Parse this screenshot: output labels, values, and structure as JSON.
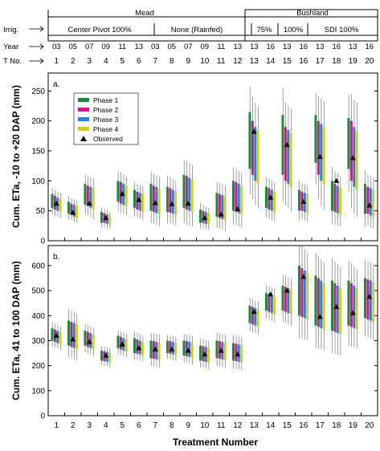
{
  "header": {
    "sites": [
      "Mead",
      "Bushland"
    ],
    "irrigation_label": "Irrig.",
    "irrigation": [
      "Center Pivot 100%",
      "None (Rainfed)",
      "75%",
      "100%",
      "SDI 100%"
    ],
    "year_label": "Year",
    "years": [
      "03",
      "05",
      "07",
      "09",
      "11",
      "13",
      "03",
      "05",
      "07",
      "09",
      "11",
      "13",
      "13",
      "16",
      "13",
      "16",
      "13",
      "16",
      "13",
      "16"
    ],
    "tno_label": "T No."
  },
  "chart_data": [
    {
      "type": "box",
      "panel_label": "a.",
      "ylabel": "Cum. ETa, -10 to +20 DAP (mm)",
      "xlabel": "",
      "ylim": [
        0,
        280
      ],
      "yticks": [
        0,
        50,
        100,
        150,
        200,
        250
      ],
      "categories": [
        "1",
        "2",
        "3",
        "4",
        "5",
        "6",
        "7",
        "8",
        "9",
        "10",
        "11",
        "12",
        "13",
        "14",
        "15",
        "16",
        "17",
        "18",
        "19",
        "20"
      ],
      "legend": [
        "Phase 1",
        "Phase 2",
        "Phase 3",
        "Phase 4",
        "Observed"
      ],
      "series": [
        {
          "name": "Phase 1",
          "color": "#1a8a3a",
          "boxes": [
            [
              55,
              78
            ],
            [
              45,
              65
            ],
            [
              60,
              95
            ],
            [
              30,
              48
            ],
            [
              65,
              100
            ],
            [
              55,
              85
            ],
            [
              50,
              95
            ],
            [
              48,
              90
            ],
            [
              55,
              110
            ],
            [
              30,
              52
            ],
            [
              40,
              80
            ],
            [
              50,
              100
            ],
            [
              120,
              215
            ],
            [
              55,
              90
            ],
            [
              110,
              210
            ],
            [
              50,
              85
            ],
            [
              130,
              210
            ],
            [
              50,
              100
            ],
            [
              120,
              205
            ],
            [
              45,
              95
            ]
          ]
        },
        {
          "name": "Phase 2",
          "color": "#c0208a",
          "boxes": [
            [
              52,
              75
            ],
            [
              43,
              62
            ],
            [
              58,
              92
            ],
            [
              30,
              46
            ],
            [
              62,
              98
            ],
            [
              52,
              82
            ],
            [
              48,
              92
            ],
            [
              47,
              88
            ],
            [
              52,
              108
            ],
            [
              30,
              50
            ],
            [
              38,
              78
            ],
            [
              48,
              98
            ],
            [
              110,
              200
            ],
            [
              52,
              88
            ],
            [
              100,
              190
            ],
            [
              50,
              82
            ],
            [
              110,
              200
            ],
            [
              48,
              95
            ],
            [
              100,
              200
            ],
            [
              45,
              90
            ]
          ]
        },
        {
          "name": "Phase 3",
          "color": "#2f7fd0",
          "boxes": [
            [
              50,
              72
            ],
            [
              40,
              60
            ],
            [
              55,
              90
            ],
            [
              28,
              44
            ],
            [
              60,
              95
            ],
            [
              50,
              80
            ],
            [
              46,
              90
            ],
            [
              45,
              85
            ],
            [
              50,
              105
            ],
            [
              28,
              48
            ],
            [
              36,
              76
            ],
            [
              46,
              95
            ],
            [
              100,
              190
            ],
            [
              50,
              85
            ],
            [
              95,
              185
            ],
            [
              48,
              80
            ],
            [
              100,
              195
            ],
            [
              46,
              92
            ],
            [
              90,
              190
            ],
            [
              42,
              88
            ]
          ]
        },
        {
          "name": "Phase 4",
          "color": "#d8cc20",
          "boxes": [
            [
              48,
              70
            ],
            [
              38,
              58
            ],
            [
              52,
              88
            ],
            [
              27,
              42
            ],
            [
              58,
              92
            ],
            [
              48,
              78
            ],
            [
              44,
              88
            ],
            [
              43,
              82
            ],
            [
              48,
              102
            ],
            [
              27,
              46
            ],
            [
              34,
              74
            ],
            [
              44,
              92
            ],
            [
              95,
              185
            ],
            [
              48,
              82
            ],
            [
              90,
              180
            ],
            [
              46,
              78
            ],
            [
              95,
              190
            ],
            [
              44,
              88
            ],
            [
              85,
              185
            ],
            [
              40,
              85
            ]
          ]
        }
      ],
      "observed": [
        62,
        47,
        62,
        38,
        78,
        68,
        63,
        61,
        62,
        38,
        44,
        53,
        182,
        72,
        160,
        65,
        140,
        100,
        138,
        59
      ]
    },
    {
      "type": "box",
      "panel_label": "b.",
      "ylabel": "Cum. ETa, 41 to 100 DAP (mm)",
      "xlabel": "Treatment Number",
      "ylim": [
        0,
        680
      ],
      "yticks": [
        0,
        100,
        200,
        300,
        400,
        500,
        600
      ],
      "categories": [
        "1",
        "2",
        "3",
        "4",
        "5",
        "6",
        "7",
        "8",
        "9",
        "10",
        "11",
        "12",
        "13",
        "14",
        "15",
        "16",
        "17",
        "18",
        "19",
        "20"
      ],
      "series": [
        {
          "name": "Phase 1",
          "color": "#1a8a3a",
          "boxes": [
            [
              300,
              350
            ],
            [
              280,
              380
            ],
            [
              280,
              340
            ],
            [
              220,
              260
            ],
            [
              270,
              320
            ],
            [
              250,
              310
            ],
            [
              230,
              300
            ],
            [
              250,
              300
            ],
            [
              240,
              300
            ],
            [
              220,
              280
            ],
            [
              230,
              300
            ],
            [
              220,
              290
            ],
            [
              370,
              440
            ],
            [
              420,
              490
            ],
            [
              420,
              520
            ],
            [
              400,
              600
            ],
            [
              360,
              560
            ],
            [
              340,
              540
            ],
            [
              360,
              540
            ],
            [
              390,
              550
            ]
          ]
        },
        {
          "name": "Phase 2",
          "color": "#c0208a",
          "boxes": [
            [
              295,
              345
            ],
            [
              275,
              375
            ],
            [
              275,
              335
            ],
            [
              218,
              258
            ],
            [
              265,
              315
            ],
            [
              248,
              305
            ],
            [
              228,
              298
            ],
            [
              248,
              298
            ],
            [
              238,
              298
            ],
            [
              218,
              278
            ],
            [
              228,
              298
            ],
            [
              218,
              288
            ],
            [
              365,
              435
            ],
            [
              415,
              485
            ],
            [
              415,
              515
            ],
            [
              395,
              590
            ],
            [
              355,
              550
            ],
            [
              335,
              530
            ],
            [
              355,
              530
            ],
            [
              385,
              545
            ]
          ]
        },
        {
          "name": "Phase 3",
          "color": "#2f7fd0",
          "boxes": [
            [
              290,
              340
            ],
            [
              270,
              370
            ],
            [
              270,
              330
            ],
            [
              215,
              255
            ],
            [
              260,
              310
            ],
            [
              245,
              300
            ],
            [
              225,
              295
            ],
            [
              245,
              295
            ],
            [
              235,
              295
            ],
            [
              215,
              275
            ],
            [
              225,
              295
            ],
            [
              215,
              285
            ],
            [
              360,
              430
            ],
            [
              410,
              480
            ],
            [
              410,
              510
            ],
            [
              390,
              580
            ],
            [
              350,
              540
            ],
            [
              330,
              520
            ],
            [
              350,
              520
            ],
            [
              380,
              540
            ]
          ]
        },
        {
          "name": "Phase 4",
          "color": "#d8cc20",
          "boxes": [
            [
              285,
              335
            ],
            [
              265,
              365
            ],
            [
              265,
              325
            ],
            [
              212,
              252
            ],
            [
              255,
              305
            ],
            [
              242,
              295
            ],
            [
              222,
              292
            ],
            [
              242,
              292
            ],
            [
              232,
              292
            ],
            [
              212,
              272
            ],
            [
              222,
              292
            ],
            [
              212,
              282
            ],
            [
              355,
              425
            ],
            [
              405,
              475
            ],
            [
              405,
              505
            ],
            [
              385,
              570
            ],
            [
              345,
              530
            ],
            [
              325,
              510
            ],
            [
              345,
              510
            ],
            [
              375,
              535
            ]
          ]
        }
      ],
      "observed": [
        320,
        305,
        295,
        240,
        285,
        270,
        265,
        265,
        260,
        245,
        260,
        245,
        415,
        485,
        500,
        555,
        395,
        435,
        410,
        475
      ]
    }
  ]
}
